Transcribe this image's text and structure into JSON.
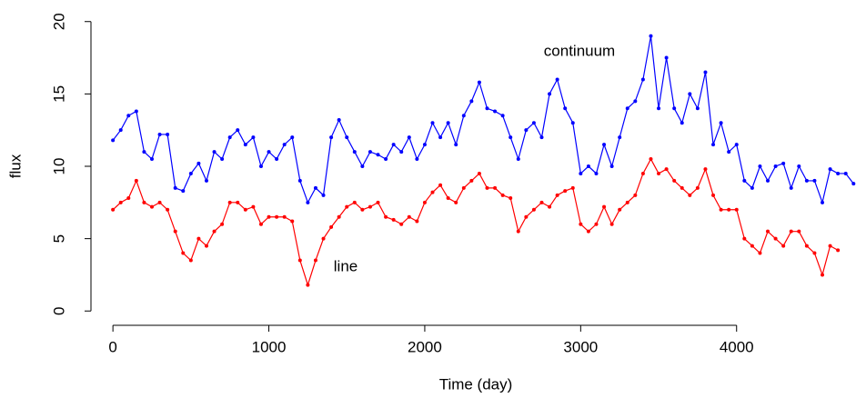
{
  "chart_data": {
    "type": "line",
    "x_label": "Time (day)",
    "y_label": "flux",
    "xlim": [
      -100,
      4760
    ],
    "ylim": [
      -0.8,
      20.8
    ],
    "xticks": [
      0,
      1000,
      2000,
      3000,
      4000
    ],
    "yticks": [
      0,
      5,
      10,
      15,
      20
    ],
    "grid": false,
    "x": [
      0,
      50,
      100,
      150,
      200,
      250,
      300,
      350,
      400,
      450,
      500,
      550,
      600,
      650,
      700,
      750,
      800,
      850,
      900,
      950,
      1000,
      1050,
      1100,
      1150,
      1200,
      1250,
      1300,
      1350,
      1400,
      1450,
      1500,
      1550,
      1600,
      1650,
      1700,
      1750,
      1800,
      1850,
      1900,
      1950,
      2000,
      2050,
      2100,
      2150,
      2200,
      2250,
      2300,
      2350,
      2400,
      2450,
      2500,
      2550,
      2600,
      2650,
      2700,
      2750,
      2800,
      2850,
      2900,
      2950,
      3000,
      3050,
      3100,
      3150,
      3200,
      3250,
      3300,
      3350,
      3400,
      3450,
      3500,
      3550,
      3600,
      3650,
      3700,
      3750,
      3800,
      3850,
      3900,
      3950,
      4000,
      4050,
      4100,
      4150,
      4200,
      4250,
      4300,
      4350,
      4400,
      4450,
      4500,
      4550,
      4600,
      4650,
      4700,
      4750
    ],
    "series": [
      {
        "name": "continuum",
        "color": "#0000ff",
        "values": [
          11.8,
          12.5,
          13.5,
          13.8,
          11,
          10.5,
          12.2,
          12.2,
          8.5,
          8.3,
          9.5,
          10.2,
          9,
          11,
          10.5,
          12,
          12.5,
          11.5,
          12,
          10,
          11,
          10.5,
          11.5,
          12,
          9,
          7.5,
          8.5,
          8,
          12,
          13.2,
          12,
          11,
          10,
          11,
          10.8,
          10.5,
          11.5,
          11,
          12,
          10.5,
          11.5,
          13,
          12,
          13,
          11.5,
          13.5,
          14.5,
          15.8,
          14,
          13.8,
          13.5,
          12,
          10.5,
          12.5,
          13,
          12,
          15,
          16,
          14,
          13,
          9.5,
          10,
          9.5,
          11.5,
          10,
          12,
          14,
          14.5,
          16,
          19,
          14,
          17.5,
          14,
          13,
          15,
          14,
          16.5,
          11.5,
          13,
          11,
          11.5,
          9,
          8.5,
          10,
          9,
          10,
          10.2,
          8.5,
          10,
          9,
          9,
          7.5,
          9.8,
          9.5,
          9.5,
          8.8
        ]
      },
      {
        "name": "line",
        "color": "#ff0000",
        "values": [
          7,
          7.5,
          7.8,
          9,
          7.5,
          7.2,
          7.5,
          7,
          5.5,
          4,
          3.5,
          5,
          4.5,
          5.5,
          6,
          7.5,
          7.5,
          7,
          7.2,
          6,
          6.5,
          6.5,
          6.5,
          6.2,
          3.5,
          1.8,
          3.5,
          5,
          5.8,
          6.5,
          7.2,
          7.5,
          7,
          7.2,
          7.5,
          6.5,
          6.3,
          6,
          6.5,
          6.2,
          7.5,
          8.2,
          8.7,
          7.8,
          7.5,
          8.5,
          9,
          9.5,
          8.5,
          8.5,
          8,
          7.8,
          5.5,
          6.5,
          7,
          7.5,
          7.2,
          8,
          8.3,
          8.5,
          6,
          5.5,
          6,
          7.2,
          6,
          7,
          7.5,
          8,
          9.5,
          10.5,
          9.5,
          9.8,
          9,
          8.5,
          8,
          8.5,
          9.8,
          8,
          7,
          7,
          7,
          5,
          4.5,
          4,
          5.5,
          5,
          4.5,
          5.5,
          5.5,
          4.5,
          4,
          2.5,
          4.5,
          4.2,
          null,
          null
        ]
      }
    ]
  }
}
